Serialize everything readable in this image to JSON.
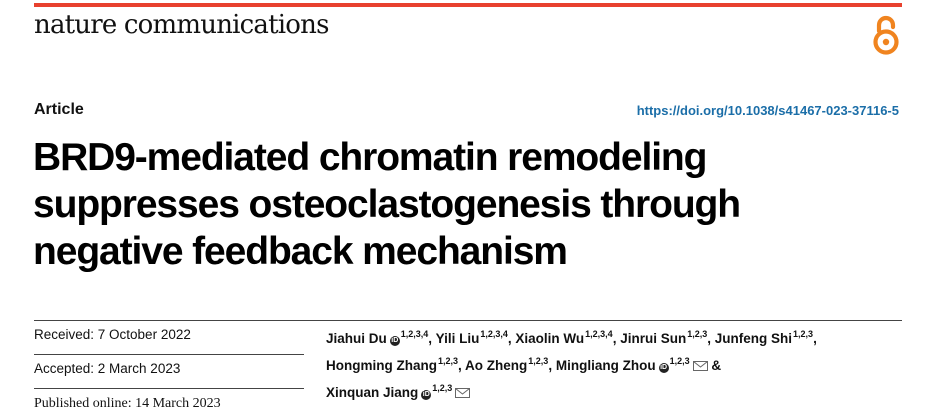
{
  "header": {
    "journal_name": "nature communications",
    "open_access_icon": "open-access-icon",
    "brand_color": "#e8412e",
    "link_color": "#1b6ea8"
  },
  "article": {
    "type": "Article",
    "doi": "https://doi.org/10.1038/s41467-023-37116-5",
    "title_lines": [
      "BRD9-mediated chromatin remodeling",
      "suppresses osteoclastogenesis through",
      "negative feedback mechanism"
    ]
  },
  "dates": {
    "received": "Received: 7 October 2022",
    "accepted": "Accepted: 2 March 2023",
    "published": "Published online: 14 March 2023"
  },
  "authors": [
    {
      "name": "Jiahui Du",
      "sup": "1,2,3,4",
      "orcid": true,
      "mail": false,
      "sep": ","
    },
    {
      "name": "Yili Liu",
      "sup": "1,2,3,4",
      "orcid": false,
      "mail": false,
      "sep": ","
    },
    {
      "name": "Xiaolin Wu",
      "sup": "1,2,3,4",
      "orcid": false,
      "mail": false,
      "sep": ","
    },
    {
      "name": "Jinrui Sun",
      "sup": "1,2,3",
      "orcid": false,
      "mail": false,
      "sep": ","
    },
    {
      "name": "Junfeng Shi",
      "sup": "1,2,3",
      "orcid": false,
      "mail": false,
      "sep": ","
    },
    {
      "name": "Hongming Zhang",
      "sup": "1,2,3",
      "orcid": false,
      "mail": false,
      "sep": ","
    },
    {
      "name": "Ao Zheng",
      "sup": "1,2,3",
      "orcid": false,
      "mail": false,
      "sep": ","
    },
    {
      "name": "Mingliang Zhou",
      "sup": "1,2,3",
      "orcid": true,
      "mail": true,
      "sep": " &"
    },
    {
      "name": "Xinquan Jiang",
      "sup": "1,2,3",
      "orcid": true,
      "mail": true,
      "sep": ""
    }
  ]
}
